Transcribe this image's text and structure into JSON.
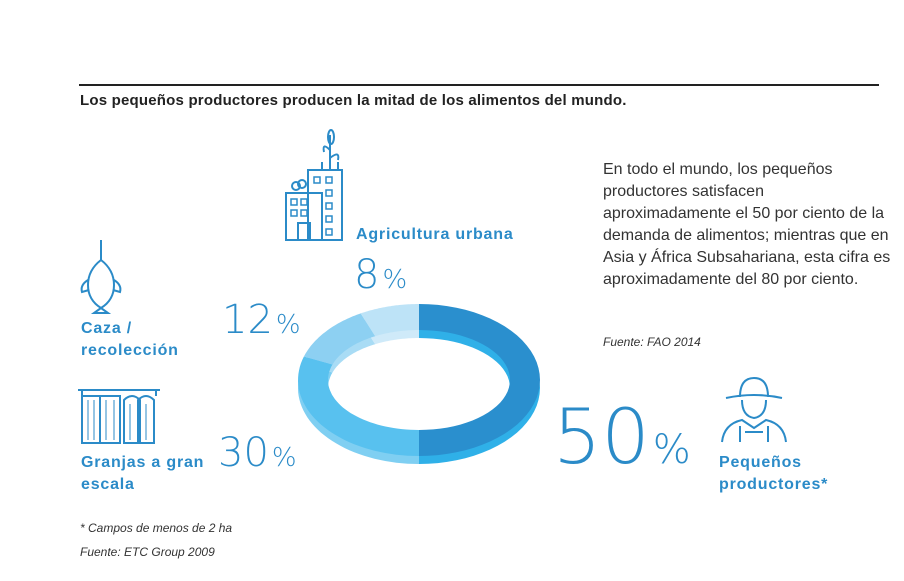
{
  "title": "Los pequeños productores producen la mitad de los alimentos del mundo.",
  "note": "En todo el mundo, los pequeños productores satisfacen aproximadamente el 50 por ciento de la demanda de alimentos; mientras que en Asia y África Subsahariana, esta cifra es aproximadamente del 80 por ciento.",
  "note_source": "Fuente: FAO 2014",
  "footnote": "* Campos de menos de 2 ha",
  "footnote_source": "Fuente: ETC Group 2009",
  "chart_data": {
    "type": "pie",
    "style": "donut",
    "categories": [
      "Pequeños productores*",
      "Granjas a gran escala",
      "Caza / recolección",
      "Agricultura urbana"
    ],
    "values": [
      50,
      30,
      12,
      8
    ],
    "labels": [
      "50",
      "30",
      "12",
      "8"
    ],
    "unit": "%",
    "icons": [
      "farmer-icon",
      "silo-icon",
      "fish-icon",
      "city-plants-icon"
    ],
    "colors": [
      "#2a8fce",
      "#58c1ef",
      "#8dd0f2",
      "#bde3f7"
    ],
    "side_colors": [
      "#2fb0e8",
      "#7fcff2",
      "#a9dcf5",
      "#cfeaf9"
    ]
  }
}
